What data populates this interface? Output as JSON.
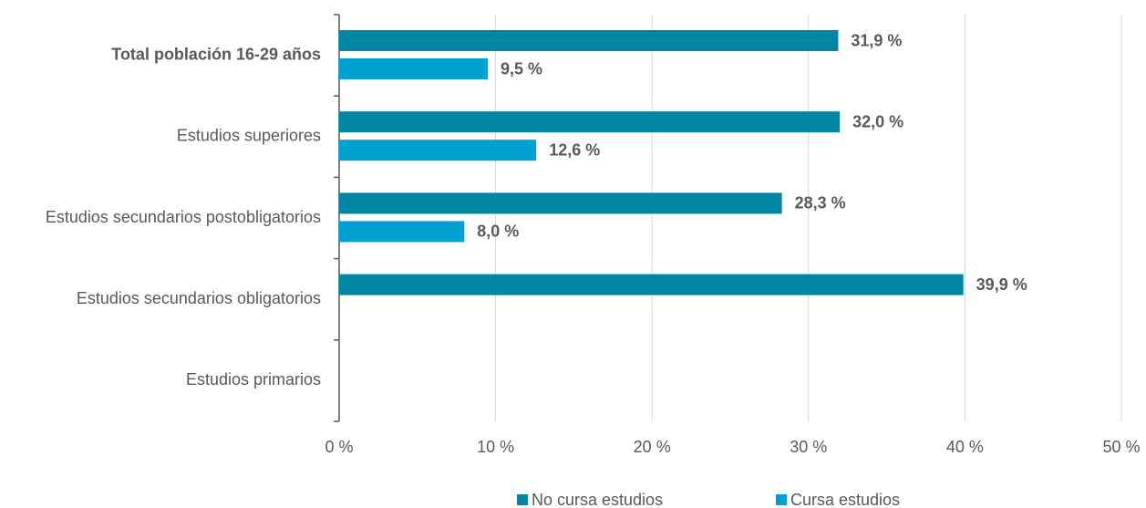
{
  "chart_data": {
    "type": "hbar",
    "categories": [
      "Total población 16-29 años",
      "Estudios superiores",
      "Estudios secundarios postobligatorios",
      "Estudios secundarios obligatorios",
      "Estudios primarios"
    ],
    "series": [
      {
        "name": "No cursa estudios",
        "color": "#0086a3",
        "values": [
          31.9,
          32.0,
          28.3,
          39.9,
          null
        ],
        "value_labels": [
          "31,9 %",
          "32,0 %",
          "28,3 %",
          "39,9 %",
          null
        ]
      },
      {
        "name": "Cursa estudios",
        "color": "#00a0d1",
        "values": [
          9.5,
          12.6,
          8.0,
          null,
          null
        ],
        "value_labels": [
          "9,5 %",
          "12,6 %",
          "8,0 %",
          null,
          null
        ]
      }
    ],
    "xlim": [
      0,
      50
    ],
    "xticks": [
      {
        "value": 0,
        "label": "0 %"
      },
      {
        "value": 10,
        "label": "10 %"
      },
      {
        "value": 20,
        "label": "20 %"
      },
      {
        "value": 30,
        "label": "30 %"
      },
      {
        "value": 40,
        "label": "40 %"
      },
      {
        "value": 50,
        "label": "50 %"
      }
    ],
    "grid": true,
    "legend": "bottom"
  }
}
